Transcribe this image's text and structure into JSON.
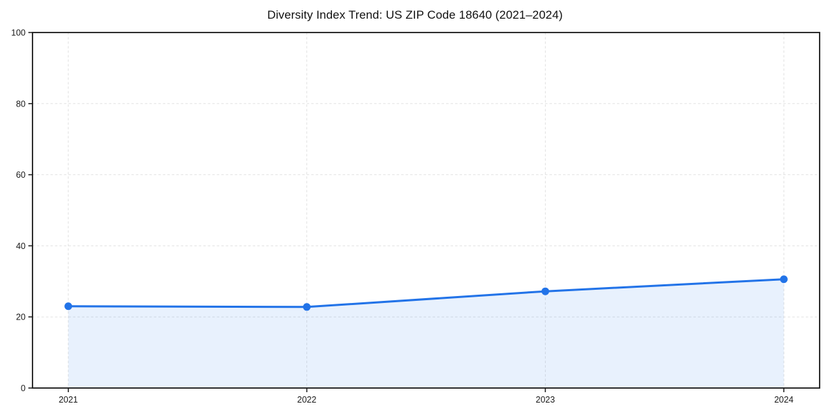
{
  "chart_data": {
    "type": "line",
    "title": "Diversity Index Trend: US ZIP Code 18640 (2021–2024)",
    "x": [
      2021,
      2022,
      2023,
      2024
    ],
    "values": [
      23.0,
      22.8,
      27.2,
      30.6
    ],
    "xlabel": "",
    "ylabel": "",
    "ylim": [
      0,
      100
    ],
    "yticks": [
      0,
      20,
      40,
      60,
      80,
      100
    ],
    "xtick_labels": [
      "2021",
      "2022",
      "2023",
      "2024"
    ],
    "x_margin_fraction": 0.05,
    "grid": true,
    "grid_style": "dashed",
    "legend_position": "none",
    "area_fill": true,
    "markers": true,
    "colors": {
      "line": "#2273e8",
      "marker": "#2273e8",
      "fill": "#2273e8",
      "fill_opacity": 0.1,
      "grid": "#e2e2e2",
      "spine": "#1a1a1a",
      "tick_label": "#1a1a1a",
      "title": "#111111",
      "background": "#ffffff"
    }
  }
}
